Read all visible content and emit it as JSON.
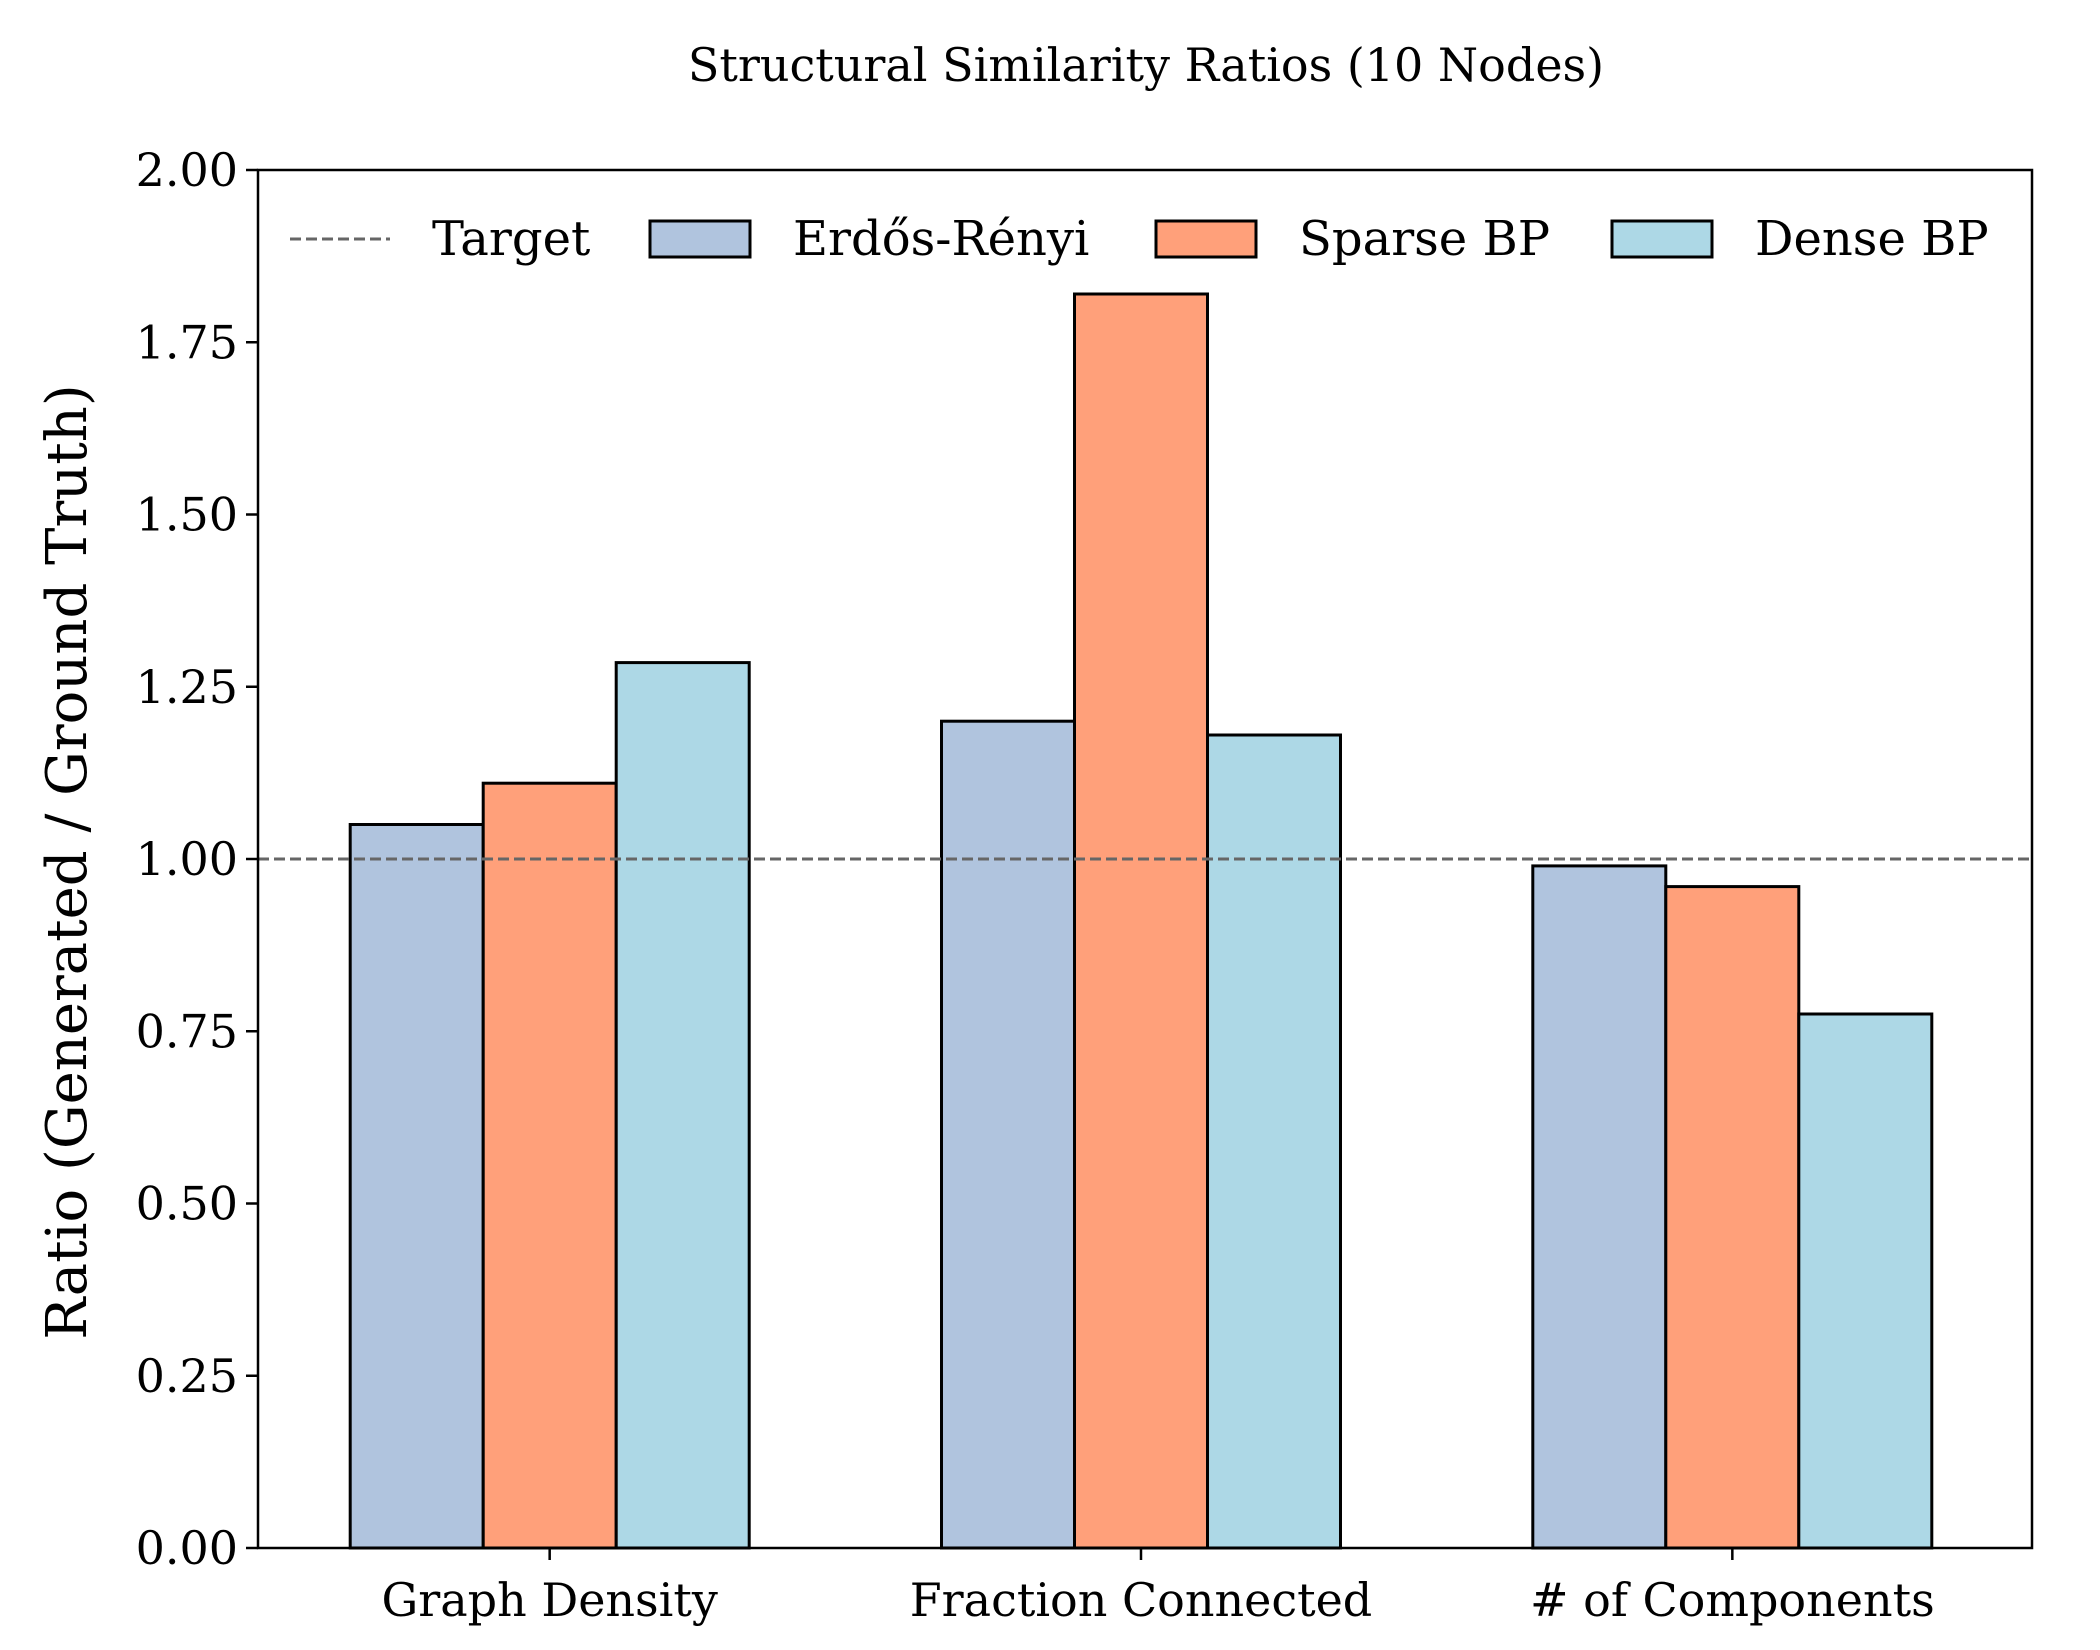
{
  "chart_data": {
    "type": "bar",
    "title": "Structural Similarity Ratios (10 Nodes)",
    "xlabel": "",
    "ylabel": "Ratio (Generated / Ground Truth)",
    "ylim": [
      0,
      2.0
    ],
    "yticks": [
      "0.00",
      "0.25",
      "0.50",
      "0.75",
      "1.00",
      "1.25",
      "1.50",
      "1.75",
      "2.00"
    ],
    "categories": [
      "Graph Density",
      "Fraction Connected",
      "# of Components"
    ],
    "series": [
      {
        "name": "Erdős-Rényi",
        "color": "#b0c4de",
        "values": [
          1.05,
          1.2,
          0.99
        ]
      },
      {
        "name": "Sparse BP",
        "color": "#ffa07a",
        "values": [
          1.11,
          1.82,
          0.96
        ]
      },
      {
        "name": "Dense BP",
        "color": "#add8e6",
        "values": [
          1.285,
          1.18,
          0.775
        ]
      }
    ],
    "reference_line": {
      "name": "Target",
      "y": 1.0,
      "color": "#666666",
      "style": "dashed"
    },
    "grid": false,
    "legend_position": "top"
  }
}
